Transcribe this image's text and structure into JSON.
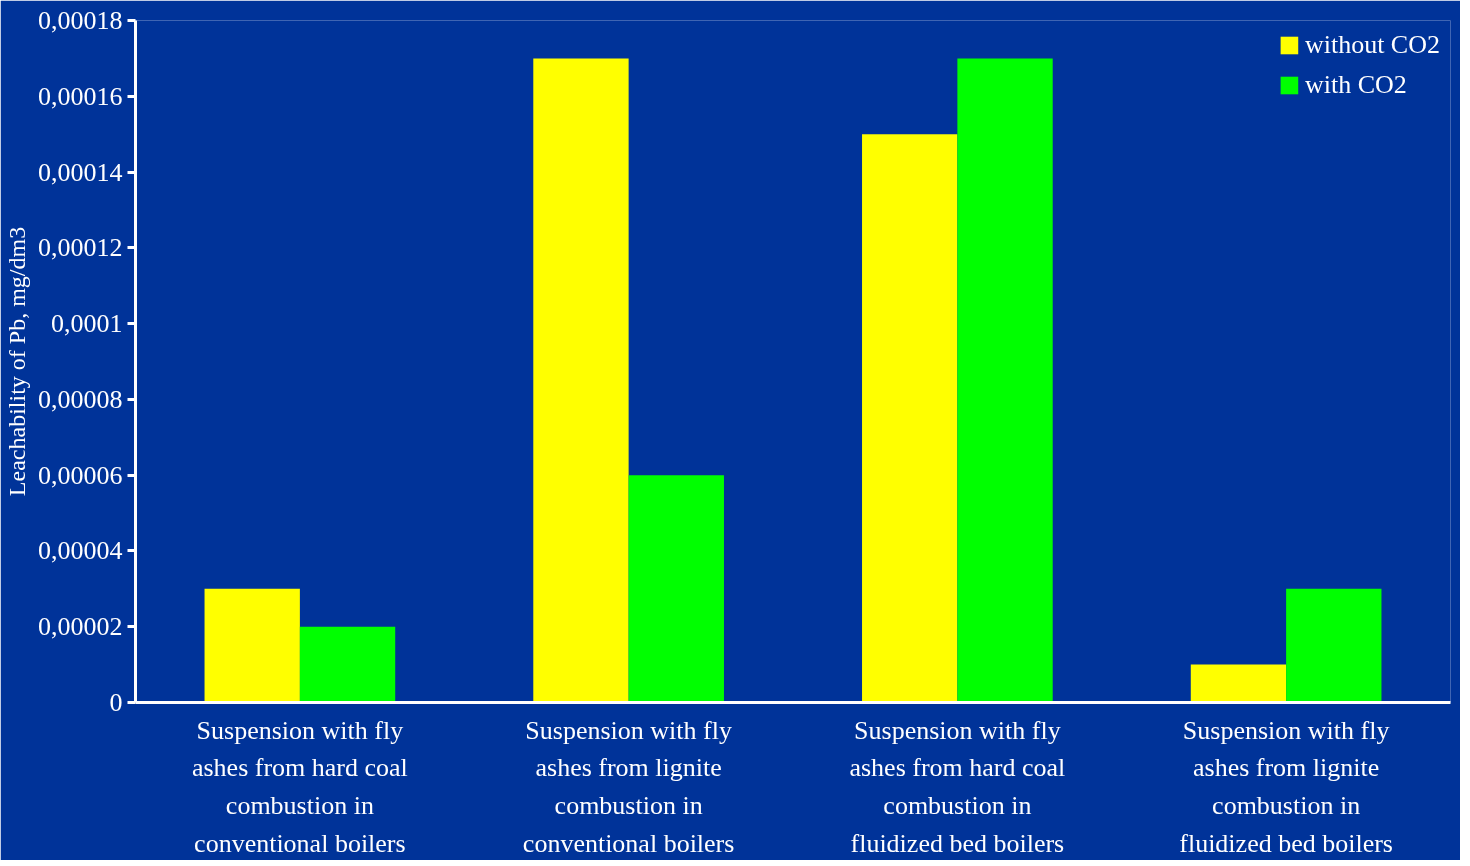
{
  "chart_data": {
    "type": "bar",
    "ylabel": "Leachability of Pb, mg/dm3",
    "categories": [
      "Suspension with fly\nashes from hard coal\ncombustion in\nconventional boilers",
      "Suspension with fly\nashes from lignite\ncombustion in\nconventional boilers",
      "Suspension with fly\nashes from hard coal\ncombustion in\nfluidized bed boilers",
      "Suspension with fly\nashes from lignite\ncombustion in\nfluidized bed boilers"
    ],
    "series": [
      {
        "name": "without CO2",
        "color": "#ffff00",
        "values": [
          3e-05,
          0.00017,
          0.00015,
          1e-05
        ]
      },
      {
        "name": "with CO2",
        "color": "#00ff00",
        "values": [
          2e-05,
          6e-05,
          0.00017,
          3e-05
        ]
      }
    ],
    "ylim": [
      0,
      0.00018
    ],
    "yticks": [
      {
        "value": 0,
        "label": "0"
      },
      {
        "value": 2e-05,
        "label": "0,00002"
      },
      {
        "value": 4e-05,
        "label": "0,00004"
      },
      {
        "value": 6e-05,
        "label": "0,00006"
      },
      {
        "value": 8e-05,
        "label": "0,00008"
      },
      {
        "value": 0.0001,
        "label": "0,0001"
      },
      {
        "value": 0.00012,
        "label": "0,00012"
      },
      {
        "value": 0.00014,
        "label": "0,00014"
      },
      {
        "value": 0.00016,
        "label": "0,00016"
      },
      {
        "value": 0.00018,
        "label": "0,00018"
      }
    ],
    "grid": false,
    "legend": "top right"
  }
}
